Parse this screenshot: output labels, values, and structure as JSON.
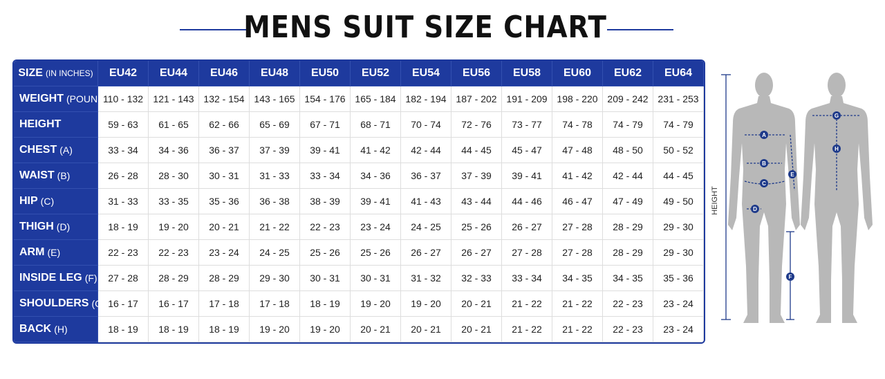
{
  "title": "MENS SUIT SIZE CHART",
  "table": {
    "header": {
      "label": "SIZE",
      "unit": "(IN INCHES)",
      "sizes": [
        "EU42",
        "EU44",
        "EU46",
        "EU48",
        "EU50",
        "EU52",
        "EU54",
        "EU56",
        "EU58",
        "EU60",
        "EU62",
        "EU64"
      ]
    },
    "rows": [
      {
        "label": "WEIGHT",
        "unit": "(POUNDS)",
        "cells": [
          "110 - 132",
          "121 - 143",
          "132 - 154",
          "143 - 165",
          "154 - 176",
          "165 - 184",
          "182 - 194",
          "187 - 202",
          "191 - 209",
          "198 - 220",
          "209 - 242",
          "231 - 253"
        ]
      },
      {
        "label": "HEIGHT",
        "cells": [
          "59 - 63",
          "61 - 65",
          "62 - 66",
          "65 - 69",
          "67 - 71",
          "68 - 71",
          "70 - 74",
          "72 - 76",
          "73 - 77",
          "74 - 78",
          "74 - 79",
          "74 - 79"
        ]
      },
      {
        "label": "CHEST",
        "unit": "(A)",
        "cells": [
          "33 - 34",
          "34 - 36",
          "36 - 37",
          "37 - 39",
          "39 - 41",
          "41 - 42",
          "42 - 44",
          "44 - 45",
          "45 - 47",
          "47 - 48",
          "48 - 50",
          "50 - 52"
        ]
      },
      {
        "label": "WAIST",
        "unit": "(B)",
        "cells": [
          "26 - 28",
          "28 - 30",
          "30 - 31",
          "31 - 33",
          "33 - 34",
          "34 - 36",
          "36 - 37",
          "37 - 39",
          "39 - 41",
          "41 - 42",
          "42 - 44",
          "44 - 45"
        ]
      },
      {
        "label": "HIP",
        "unit": "(C)",
        "cells": [
          "31 - 33",
          "33 - 35",
          "35 - 36",
          "36 - 38",
          "38 - 39",
          "39 - 41",
          "41 - 43",
          "43 - 44",
          "44 - 46",
          "46 - 47",
          "47 - 49",
          "49 - 50"
        ]
      },
      {
        "label": "THIGH",
        "unit": "(D)",
        "cells": [
          "18 - 19",
          "19 - 20",
          "20 - 21",
          "21 - 22",
          "22 - 23",
          "23 - 24",
          "24 - 25",
          "25 - 26",
          "26 - 27",
          "27 - 28",
          "28 - 29",
          "29 - 30"
        ]
      },
      {
        "label": "ARM",
        "unit": "(E)",
        "cells": [
          "22 - 23",
          "22 - 23",
          "23 - 24",
          "24 - 25",
          "25 - 26",
          "25 - 26",
          "26 - 27",
          "26 - 27",
          "27 - 28",
          "27 - 28",
          "28 - 29",
          "29 - 30"
        ]
      },
      {
        "label": "INSIDE LEG",
        "unit": "(F)",
        "cells": [
          "27 - 28",
          "28 - 29",
          "28 - 29",
          "29 - 30",
          "30 - 31",
          "30 - 31",
          "31 - 32",
          "32 - 33",
          "33 - 34",
          "34 - 35",
          "34 - 35",
          "35 - 36"
        ]
      },
      {
        "label": "SHOULDERS",
        "unit": "(G)",
        "cells": [
          "16 - 17",
          "16 - 17",
          "17 - 18",
          "17 - 18",
          "18 - 19",
          "19 - 20",
          "19 - 20",
          "20 - 21",
          "21 - 22",
          "21 - 22",
          "22 - 23",
          "23 - 24"
        ]
      },
      {
        "label": "BACK",
        "unit": "(H)",
        "cells": [
          "18 - 19",
          "18 - 19",
          "18 - 19",
          "19 - 20",
          "19 - 20",
          "20 - 21",
          "20 - 21",
          "20 - 21",
          "21 - 22",
          "21 - 22",
          "22 - 23",
          "23 - 24"
        ]
      }
    ]
  },
  "figure": {
    "height_label": "HEIGHT",
    "markers": [
      "A",
      "B",
      "C",
      "D",
      "E",
      "F",
      "G",
      "H"
    ]
  }
}
